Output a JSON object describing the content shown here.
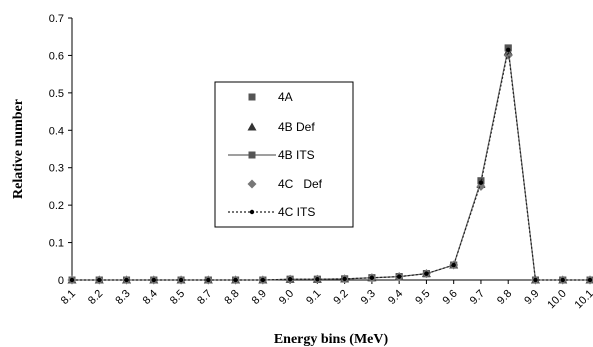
{
  "chart_data": {
    "type": "line",
    "title": "",
    "xlabel": "Energy bins (MeV)",
    "ylabel": "Relative number",
    "ylim": [
      0,
      0.7
    ],
    "yticks": [
      "0",
      "0.1",
      "0.2",
      "0.3",
      "0.4",
      "0.5",
      "0.6",
      "0.7"
    ],
    "categories": [
      "8.1",
      "8.2",
      "8.3",
      "8.4",
      "8.5",
      "8.7",
      "8.8",
      "8.9",
      "9.0",
      "9.1",
      "9.2",
      "9.3",
      "9.4",
      "9.5",
      "9.6",
      "9.7",
      "9.8",
      "9.9",
      "10.0",
      "10.1"
    ],
    "grid": false,
    "legend_position": "center-left",
    "series": [
      {
        "name": "4A",
        "style": "square-marker",
        "values": [
          0,
          0,
          0,
          0,
          0,
          0,
          0,
          0,
          0.002,
          0.002,
          0.003,
          0.006,
          0.009,
          0.017,
          0.04,
          0.265,
          0.62,
          0,
          0,
          0
        ]
      },
      {
        "name": "4B Def",
        "style": "triangle-marker",
        "values": [
          0,
          0,
          0,
          0,
          0,
          0,
          0,
          0,
          0.002,
          0.002,
          0.003,
          0.006,
          0.009,
          0.017,
          0.04,
          0.255,
          0.61,
          0,
          0,
          0
        ]
      },
      {
        "name": "4B ITS",
        "style": "solid-line-square",
        "values": [
          0,
          0,
          0,
          0,
          0,
          0,
          0,
          0,
          0.002,
          0.002,
          0.003,
          0.006,
          0.009,
          0.017,
          0.04,
          0.265,
          0.62,
          0,
          0,
          0
        ]
      },
      {
        "name": "4C   Def",
        "style": "diamond-marker",
        "values": [
          0,
          0,
          0,
          0,
          0,
          0,
          0,
          0,
          0.002,
          0.002,
          0.003,
          0.006,
          0.009,
          0.017,
          0.04,
          0.25,
          0.6,
          0,
          0,
          0
        ]
      },
      {
        "name": "4C ITS",
        "style": "dotted-line-dot",
        "values": [
          0,
          0,
          0,
          0,
          0,
          0,
          0,
          0,
          0.002,
          0.002,
          0.003,
          0.006,
          0.009,
          0.017,
          0.04,
          0.26,
          0.615,
          0,
          0,
          0
        ]
      }
    ],
    "colors": {
      "marker": "#555555",
      "line": "#666666",
      "axis": "#000000"
    }
  }
}
